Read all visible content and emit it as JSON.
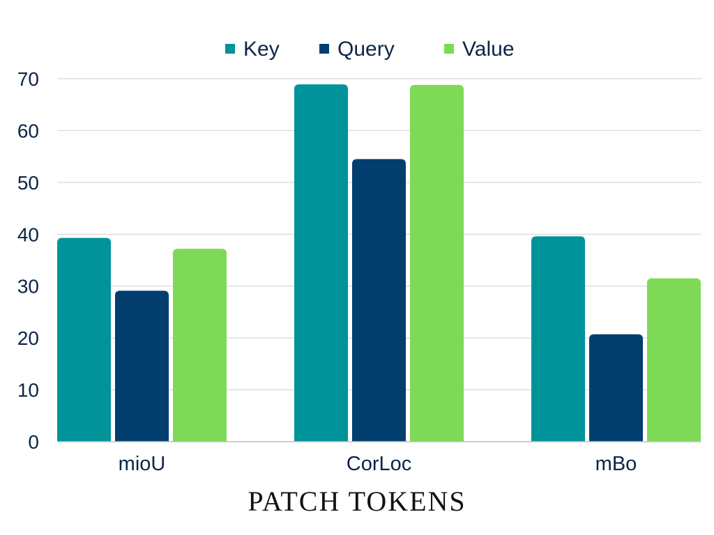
{
  "chart_data": {
    "type": "bar",
    "title": "PATCH TOKENS",
    "categories": [
      "mioU",
      "CorLoc",
      "mBo"
    ],
    "series": [
      {
        "name": "Key",
        "values": [
          39.3,
          68.9,
          39.6
        ],
        "color": "#00939A"
      },
      {
        "name": "Query",
        "values": [
          29.1,
          54.5,
          20.7
        ],
        "color": "#023E6E"
      },
      {
        "name": "Value",
        "values": [
          37.2,
          68.8,
          31.5
        ],
        "color": "#7ED957"
      }
    ],
    "ylim": [
      0,
      70
    ],
    "yticks": [
      0,
      10,
      20,
      30,
      40,
      50,
      60,
      70
    ],
    "grid": true,
    "legend": "top-center",
    "xlabel": "",
    "ylabel": ""
  }
}
